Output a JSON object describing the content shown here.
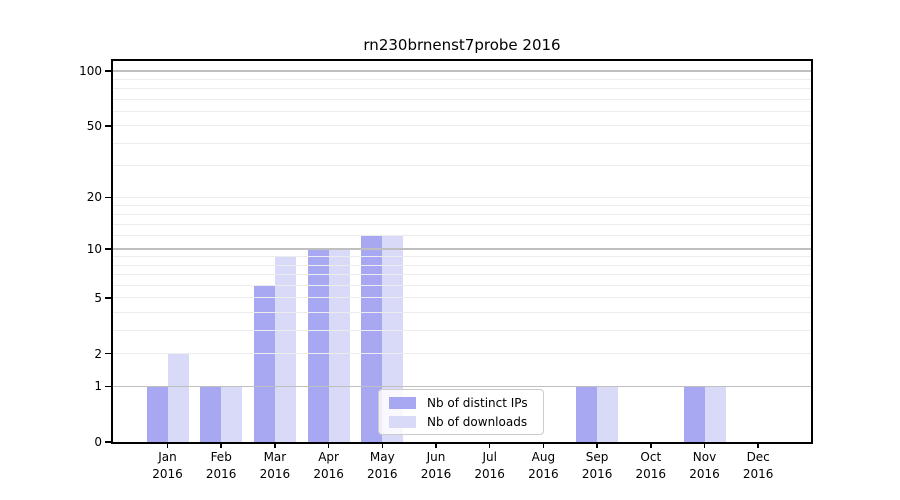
{
  "chart_data": {
    "type": "bar",
    "title": "rn230brnenst7probe 2016",
    "x_months": [
      "Jan",
      "Feb",
      "Mar",
      "Apr",
      "May",
      "Jun",
      "Jul",
      "Aug",
      "Sep",
      "Oct",
      "Nov",
      "Dec"
    ],
    "x_year": "2016",
    "series": [
      {
        "name": "Nb of distinct IPs",
        "color": "#a7a7f2",
        "values": [
          1,
          1,
          6,
          10,
          12,
          0,
          0,
          0,
          1,
          0,
          1,
          0
        ]
      },
      {
        "name": "Nb of downloads",
        "color": "#d9d9f8",
        "values": [
          2,
          1,
          9,
          10,
          12,
          0,
          0,
          0,
          1,
          0,
          1,
          0
        ]
      }
    ],
    "y_ticks": [
      0,
      1,
      2,
      5,
      10,
      20,
      50,
      100
    ],
    "y_scale": "log10(1+v)",
    "ylim": [
      0,
      113.4
    ],
    "grid": {
      "decade_lines": [
        1,
        10,
        100
      ],
      "light_lines": [
        2,
        3,
        4,
        5,
        6,
        7,
        8,
        9,
        12,
        14,
        16,
        18,
        20,
        30,
        40,
        50,
        60,
        70,
        80,
        90
      ],
      "decade_color": "#bfbfbf",
      "light_color": "#ececec"
    },
    "legend": {
      "position": "lower center"
    }
  },
  "colors": {
    "background": "#ffffff",
    "spine": "#000000",
    "text": "#000000"
  }
}
